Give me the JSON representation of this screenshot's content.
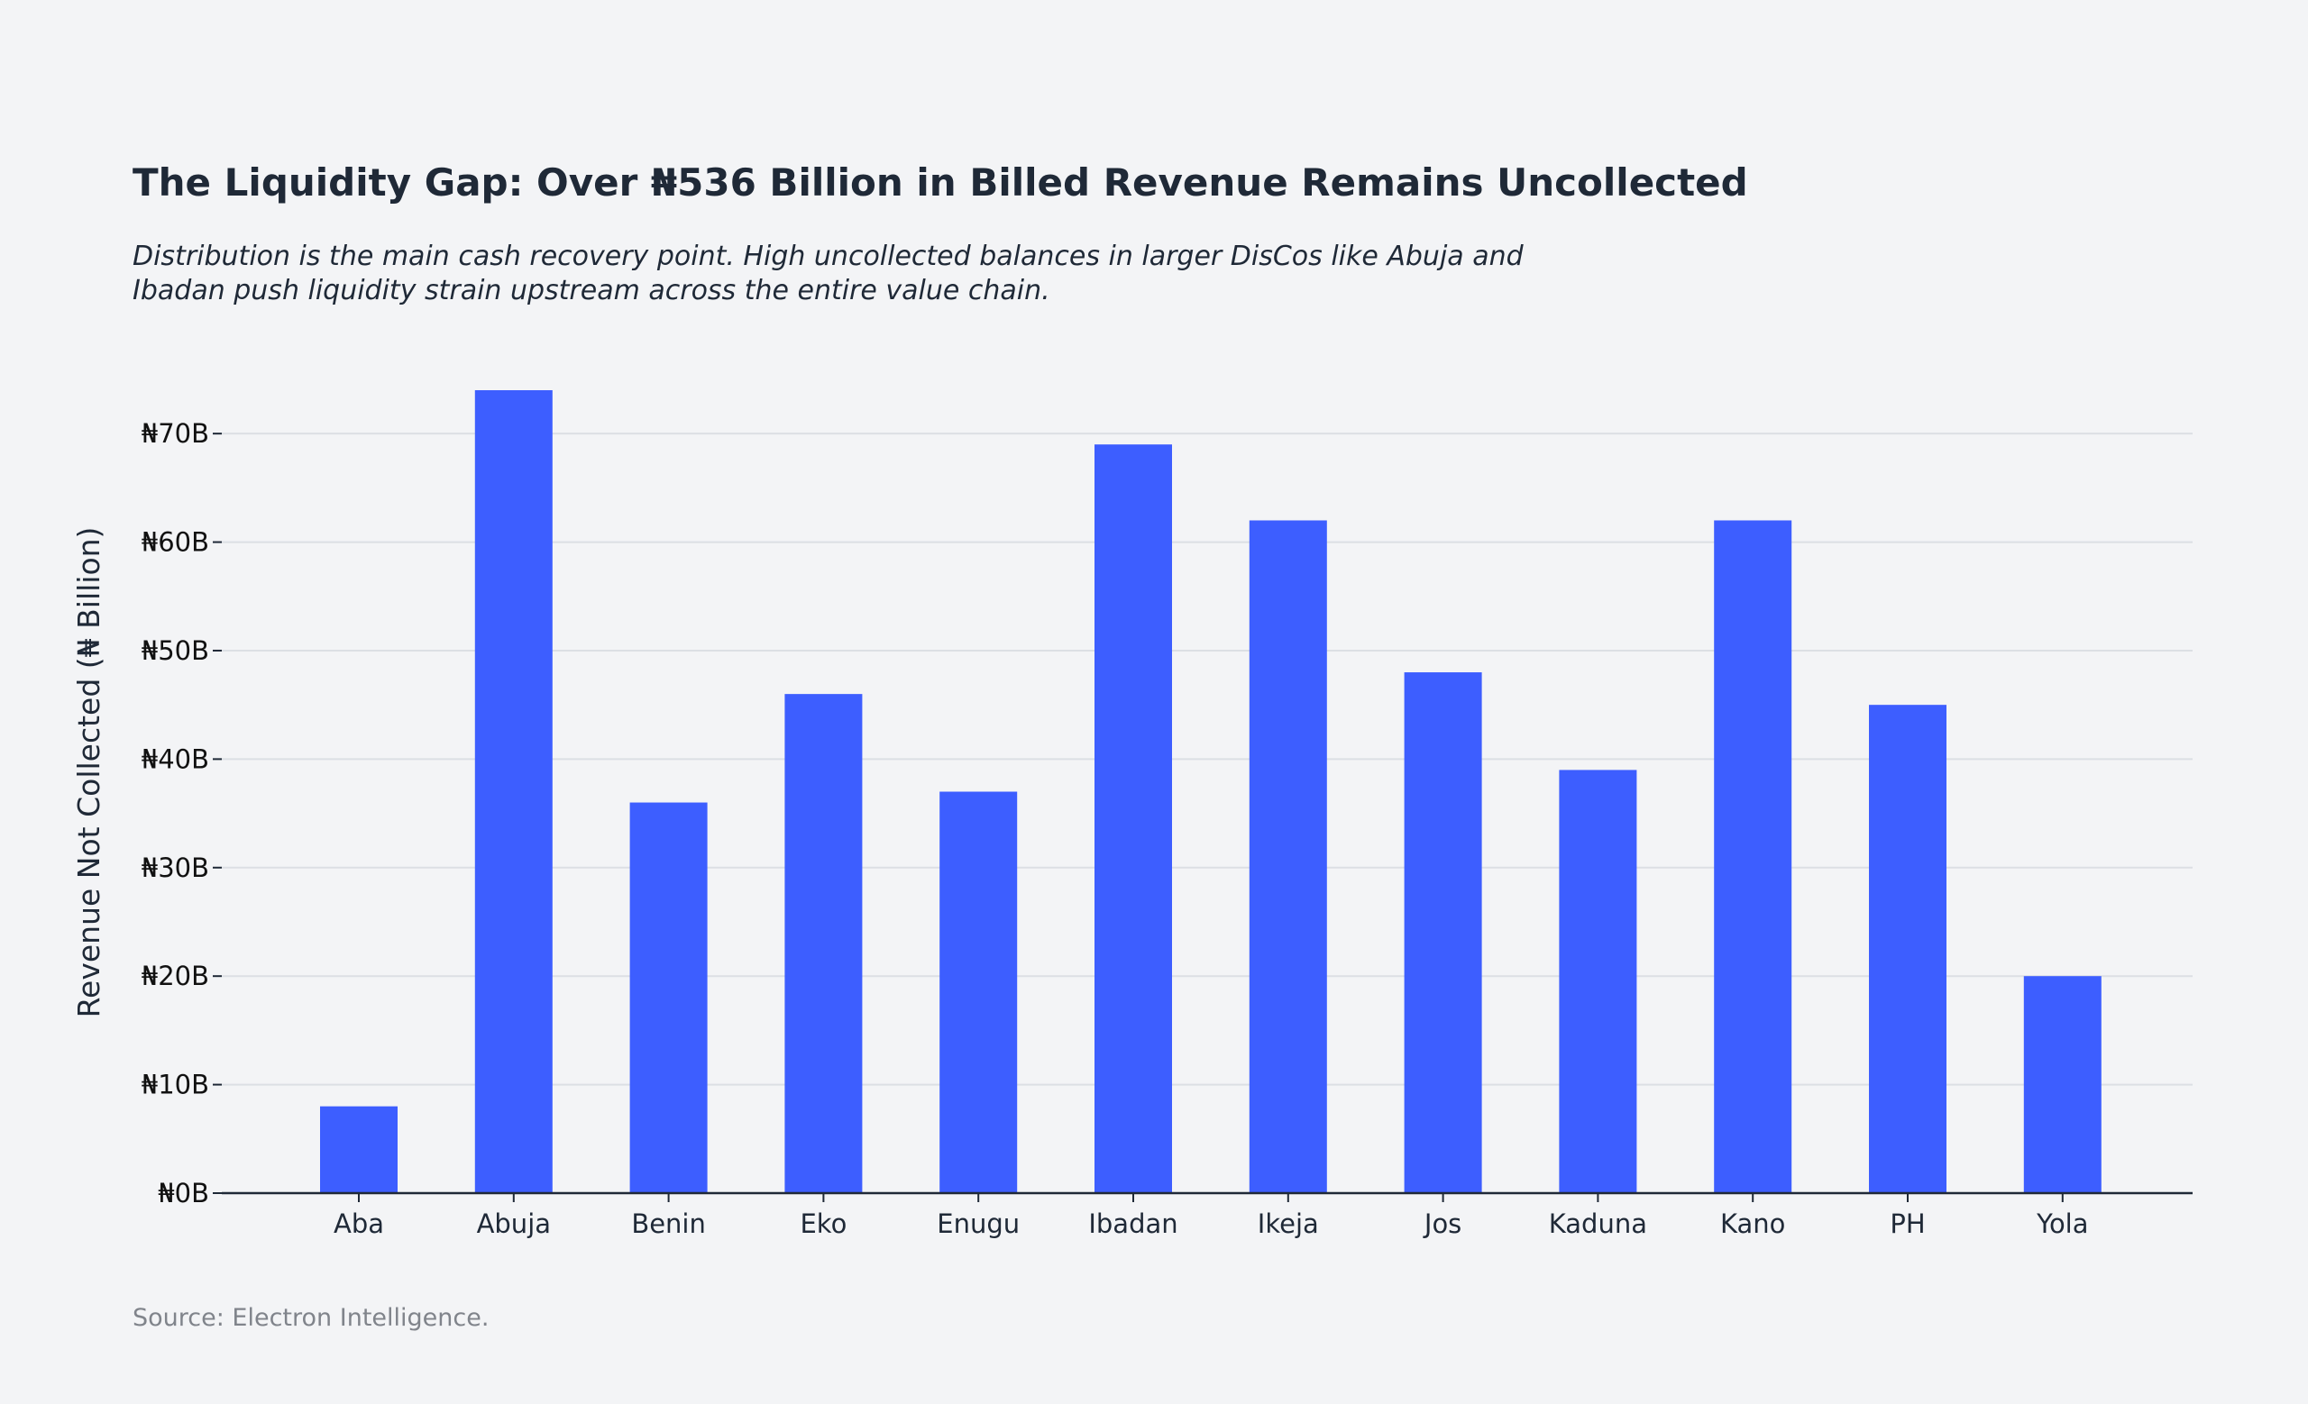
{
  "chart_data": {
    "type": "bar",
    "title": "The Liquidity Gap: Over ₦536 Billion in Billed Revenue Remains Uncollected",
    "subtitle_lines": [
      "Distribution is the main cash recovery point. High uncollected balances in larger DisCos like Abuja and",
      "Ibadan push liquidity strain upstream across the entire value chain."
    ],
    "xlabel": "",
    "ylabel": "Revenue Not Collected (₦ Billion)",
    "categories": [
      "Aba",
      "Abuja",
      "Benin",
      "Eko",
      "Enugu",
      "Ibadan",
      "Ikeja",
      "Jos",
      "Kaduna",
      "Kano",
      "PH",
      "Yola"
    ],
    "values": [
      8,
      74,
      36,
      46,
      37,
      69,
      62,
      48,
      39,
      62,
      45,
      20
    ],
    "ylim": [
      0,
      74
    ],
    "yticks": [
      0,
      10,
      20,
      30,
      40,
      50,
      60,
      70
    ],
    "ytick_labels": [
      "₦0B",
      "₦10B",
      "₦20B",
      "₦30B",
      "₦40B",
      "₦50B",
      "₦60B",
      "₦70B"
    ],
    "grid": true,
    "source": "Source: Electron Intelligence.",
    "colors": {
      "bar": "#3d5eff",
      "grid": "#dcdfe4",
      "axis": "#1f2937",
      "background": "#f3f4f6"
    }
  }
}
